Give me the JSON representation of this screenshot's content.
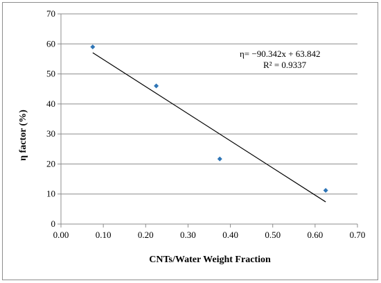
{
  "chart_data": {
    "type": "scatter",
    "title": "",
    "xlabel": "CNTs/Water Weight Fraction",
    "ylabel": "η factor  (%)",
    "xlim": [
      0,
      0.7
    ],
    "ylim": [
      0,
      70
    ],
    "x_ticks": [
      "0.00",
      "0.10",
      "0.20",
      "0.30",
      "0.40",
      "0.50",
      "0.60",
      "0.70"
    ],
    "y_ticks": [
      "0",
      "10",
      "20",
      "30",
      "40",
      "50",
      "60",
      "70"
    ],
    "grid": "horizontal",
    "series": [
      {
        "x": [
          0.075,
          0.225,
          0.375,
          0.625
        ],
        "y": [
          59.0,
          46.0,
          21.7,
          11.2
        ],
        "color": "#2e75b6",
        "marker": "diamond"
      }
    ],
    "trendline": {
      "type": "linear",
      "slope": -90.342,
      "intercept": 63.842,
      "x_range": [
        0.075,
        0.625
      ],
      "color": "#000000"
    },
    "annotations": {
      "equation": "η= −90.342x + 63.842",
      "r_squared": "R² = 0.9337"
    }
  }
}
